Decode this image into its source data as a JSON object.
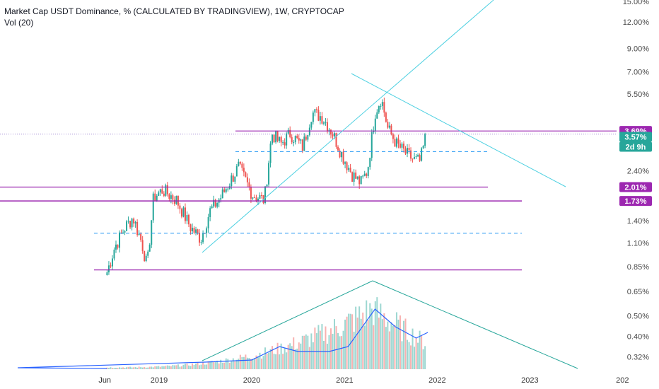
{
  "header": {
    "title": "Market Cap USDT Dominance, % (CALCULATED BY TRADINGVIEW), 1W, CRYPTOCAP",
    "indicator": "Vol (20)"
  },
  "price_axis": {
    "ticks": [
      "15.00%",
      "12.00%",
      "9.00%",
      "7.00%",
      "5.50%",
      "2.40%",
      "1.40%",
      "1.10%",
      "0.85%",
      "0.65%",
      "0.50%",
      "0.40%",
      "0.32%"
    ],
    "scale": "log",
    "ylim": [
      0.28,
      15.0
    ]
  },
  "time_axis": {
    "ticks": [
      "Jun",
      "2019",
      "2020",
      "2021",
      "2022",
      "2023",
      "202"
    ]
  },
  "badges": [
    {
      "id": "level-369",
      "text": "3.69%",
      "color": "#9c27b0"
    },
    {
      "id": "last-price",
      "text": "3.57%",
      "color": "#26a69a"
    },
    {
      "id": "countdown",
      "text": "2d 9h",
      "color": "#26a69a"
    },
    {
      "id": "level-201",
      "text": "2.01%",
      "color": "#9c27b0"
    },
    {
      "id": "level-173",
      "text": "1.73%",
      "color": "#9c27b0"
    }
  ],
  "colors": {
    "up": "#26a69a",
    "down": "#ef5350",
    "level": "#9c27b0",
    "trendline": "#4dd0e1",
    "dashed": "#2196f3",
    "volume_ma": "#2962ff",
    "volume_triangle": "#26a69a"
  },
  "chart_data": {
    "type": "candlestick",
    "timeframe": "1W",
    "scale": "log",
    "ylim": [
      0.28,
      15.0
    ],
    "x_range": [
      "2018-05-01",
      "2024-01-01"
    ],
    "candles": [
      {
        "x": "2018-06-10",
        "close": 0.8
      },
      {
        "x": "2018-07-10",
        "close": 1.05
      },
      {
        "x": "2018-08-20",
        "close": 1.3
      },
      {
        "x": "2018-09-20",
        "close": 1.45
      },
      {
        "x": "2018-10-25",
        "close": 1.1
      },
      {
        "x": "2018-11-15",
        "close": 0.85
      },
      {
        "x": "2018-12-10",
        "close": 1.8
      },
      {
        "x": "2019-01-15",
        "close": 1.95
      },
      {
        "x": "2019-03-10",
        "close": 1.75
      },
      {
        "x": "2019-05-05",
        "close": 1.3
      },
      {
        "x": "2019-06-15",
        "close": 1.15
      },
      {
        "x": "2019-07-20",
        "close": 1.55
      },
      {
        "x": "2019-09-01",
        "close": 1.8
      },
      {
        "x": "2019-11-10",
        "close": 2.5
      },
      {
        "x": "2020-01-05",
        "close": 1.85
      },
      {
        "x": "2020-02-20",
        "close": 1.75
      },
      {
        "x": "2020-03-20",
        "close": 3.6
      },
      {
        "x": "2020-04-25",
        "close": 3.2
      },
      {
        "x": "2020-06-01",
        "close": 3.6
      },
      {
        "x": "2020-07-20",
        "close": 3.1
      },
      {
        "x": "2020-08-25",
        "close": 4.5
      },
      {
        "x": "2020-10-05",
        "close": 4.3
      },
      {
        "x": "2020-11-15",
        "close": 3.6
      },
      {
        "x": "2020-12-25",
        "close": 2.8
      },
      {
        "x": "2021-02-01",
        "close": 2.3
      },
      {
        "x": "2021-03-05",
        "close": 2.1
      },
      {
        "x": "2021-04-01",
        "close": 2.4
      },
      {
        "x": "2021-05-01",
        "close": 4.5
      },
      {
        "x": "2021-05-25",
        "close": 5.3
      },
      {
        "x": "2021-06-20",
        "close": 3.8
      },
      {
        "x": "2021-07-25",
        "close": 3.2
      },
      {
        "x": "2021-08-30",
        "close": 2.9
      },
      {
        "x": "2021-10-01",
        "close": 2.7
      },
      {
        "x": "2021-10-25",
        "close": 2.65
      },
      {
        "x": "2021-11-20",
        "close": 3.57
      }
    ],
    "last_value": 3.57,
    "horizontal_levels": [
      3.69,
      2.01,
      1.73,
      0.82
    ],
    "dashed_levels": [
      2.95,
      1.22
    ],
    "volume": {
      "indicator": "Vol (20)",
      "ma_peak_date": "2021-05-01",
      "peak_date": "2021-04-25"
    }
  }
}
